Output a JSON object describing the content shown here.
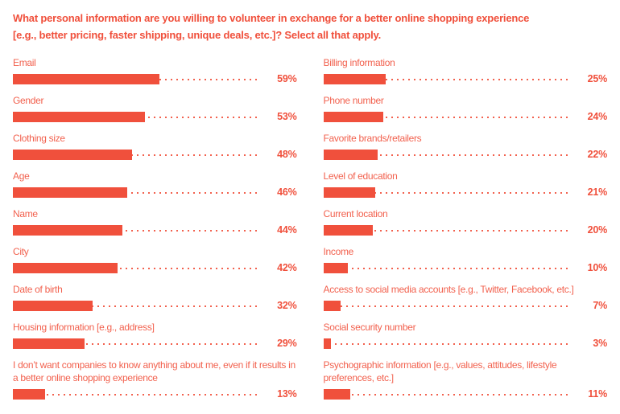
{
  "colors": {
    "accent": "#F0503C",
    "label": "#F2614E"
  },
  "chart_data": {
    "type": "bar",
    "orientation": "horizontal",
    "unit": "%",
    "xlim": [
      0,
      100
    ],
    "grid": "off",
    "legend": "none",
    "title": "What personal information are you willing to volunteer in exchange for a better online shopping experience [e.g., better pricing, faster shipping, unique deals, etc.]? Select all that apply.",
    "columns": [
      {
        "items": [
          {
            "label": "Email",
            "value": 59,
            "pct": "59%"
          },
          {
            "label": "Gender",
            "value": 53,
            "pct": "53%"
          },
          {
            "label": "Clothing size",
            "value": 48,
            "pct": "48%"
          },
          {
            "label": "Age",
            "value": 46,
            "pct": "46%"
          },
          {
            "label": "Name",
            "value": 44,
            "pct": "44%"
          },
          {
            "label": "City",
            "value": 42,
            "pct": "42%"
          },
          {
            "label": "Date of birth",
            "value": 32,
            "pct": "32%"
          },
          {
            "label": "Housing information [e.g., address]",
            "value": 29,
            "pct": "29%"
          },
          {
            "label": "I don’t want companies to know anything about me, even if it results in a better online shopping experience",
            "value": 13,
            "pct": "13%"
          }
        ]
      },
      {
        "items": [
          {
            "label": "Billing information",
            "value": 25,
            "pct": "25%"
          },
          {
            "label": "Phone number",
            "value": 24,
            "pct": "24%"
          },
          {
            "label": "Favorite brands/retailers",
            "value": 22,
            "pct": "22%"
          },
          {
            "label": "Level of education",
            "value": 21,
            "pct": "21%"
          },
          {
            "label": "Current location",
            "value": 20,
            "pct": "20%"
          },
          {
            "label": "Income",
            "value": 10,
            "pct": "10%"
          },
          {
            "label": "Access to social media accounts [e.g., Twitter, Facebook, etc.]",
            "value": 7,
            "pct": "7%"
          },
          {
            "label": "Social security number",
            "value": 3,
            "pct": "3%"
          },
          {
            "label": "Psychographic information [e.g., values, attitudes, lifestyle preferences, etc.]",
            "value": 11,
            "pct": "11%"
          }
        ]
      }
    ]
  }
}
